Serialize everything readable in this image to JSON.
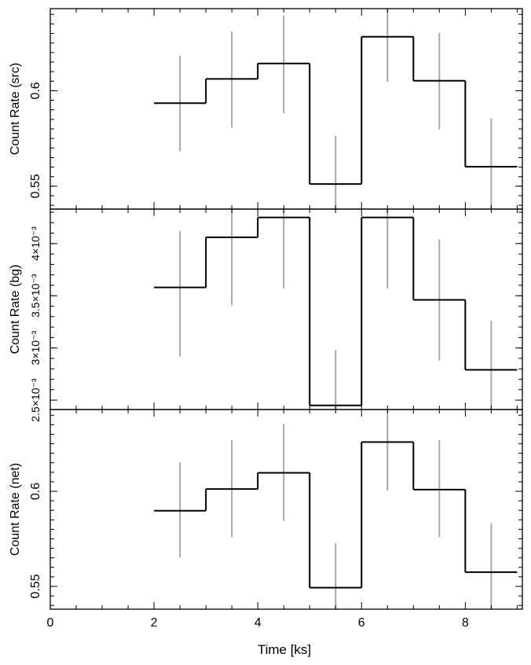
{
  "chart_data": [
    {
      "type": "line",
      "ylabel": "Count Rate (src)",
      "xlim": [
        0,
        9.1
      ],
      "ylim": [
        0.538,
        0.643
      ],
      "yticks": [
        {
          "v": 0.55,
          "label": "0.55"
        },
        {
          "v": 0.6,
          "label": "0.6"
        }
      ],
      "bins": [
        [
          2,
          3
        ],
        [
          3,
          4
        ],
        [
          4,
          5
        ],
        [
          5,
          6
        ],
        [
          6,
          7
        ],
        [
          7,
          8
        ],
        [
          8,
          9
        ]
      ],
      "values": [
        0.5935,
        0.6062,
        0.6143,
        0.5511,
        0.6283,
        0.6052,
        0.5602
      ],
      "errors": [
        {
          "x": 2.5,
          "lo": 0.5682,
          "hi": 0.6183
        },
        {
          "x": 3.5,
          "lo": 0.5806,
          "hi": 0.6311
        },
        {
          "x": 4.5,
          "lo": 0.5882,
          "hi": 0.6395
        },
        {
          "x": 5.5,
          "lo": 0.538,
          "hi": 0.5763
        },
        {
          "x": 6.5,
          "lo": 0.6046,
          "hi": 0.643
        },
        {
          "x": 7.5,
          "lo": 0.5798,
          "hi": 0.6303
        },
        {
          "x": 8.5,
          "lo": 0.538,
          "hi": 0.5855
        }
      ]
    },
    {
      "type": "line",
      "ylabel": "Count Rate (bg)",
      "xlim": [
        0,
        9.1
      ],
      "ylim": [
        0.00241,
        0.00433
      ],
      "yticks": [
        {
          "v": 0.0025,
          "label": "2.5×10⁻³"
        },
        {
          "v": 0.003,
          "label": "3×10⁻³"
        },
        {
          "v": 0.0035,
          "label": "3.5×10⁻³"
        },
        {
          "v": 0.004,
          "label": "4×10⁻³"
        }
      ],
      "bins": [
        [
          2,
          3
        ],
        [
          3,
          4
        ],
        [
          4,
          5
        ],
        [
          5,
          6
        ],
        [
          6,
          7
        ],
        [
          7,
          8
        ],
        [
          8,
          9
        ]
      ],
      "values": [
        0.00358,
        0.00406,
        0.00425,
        0.00245,
        0.00425,
        0.00346,
        0.00279
      ],
      "errors": [
        {
          "x": 2.5,
          "lo": 0.00292,
          "hi": 0.00412
        },
        {
          "x": 3.5,
          "lo": 0.00341,
          "hi": 0.00433
        },
        {
          "x": 4.5,
          "lo": 0.00357,
          "hi": 0.00433
        },
        {
          "x": 5.5,
          "lo": 0.00241,
          "hi": 0.00298
        },
        {
          "x": 6.5,
          "lo": 0.00357,
          "hi": 0.00433
        },
        {
          "x": 7.5,
          "lo": 0.00288,
          "hi": 0.00404
        },
        {
          "x": 8.5,
          "lo": 0.00241,
          "hi": 0.00326
        }
      ]
    },
    {
      "type": "line",
      "ylabel": "Count Rate (net)",
      "xlabel": "Time [ks]",
      "xlim": [
        0,
        9.1
      ],
      "xticks": [
        {
          "v": 0,
          "label": "0"
        },
        {
          "v": 2,
          "label": "2"
        },
        {
          "v": 4,
          "label": "4"
        },
        {
          "v": 6,
          "label": "6"
        },
        {
          "v": 8,
          "label": "8"
        }
      ],
      "ylim": [
        0.538,
        0.643
      ],
      "yticks": [
        {
          "v": 0.55,
          "label": "0.55"
        },
        {
          "v": 0.6,
          "label": "0.6"
        }
      ],
      "bins": [
        [
          2,
          3
        ],
        [
          3,
          4
        ],
        [
          4,
          5
        ],
        [
          5,
          6
        ],
        [
          6,
          7
        ],
        [
          7,
          8
        ],
        [
          8,
          9
        ]
      ],
      "values": [
        0.5898,
        0.6012,
        0.6097,
        0.5493,
        0.6259,
        0.6009,
        0.5575
      ],
      "errors": [
        {
          "x": 2.5,
          "lo": 0.5652,
          "hi": 0.6152
        },
        {
          "x": 3.5,
          "lo": 0.5758,
          "hi": 0.6269
        },
        {
          "x": 4.5,
          "lo": 0.5844,
          "hi": 0.6355
        },
        {
          "x": 5.5,
          "lo": 0.538,
          "hi": 0.5728
        },
        {
          "x": 6.5,
          "lo": 0.6003,
          "hi": 0.643
        },
        {
          "x": 7.5,
          "lo": 0.5758,
          "hi": 0.6269
        },
        {
          "x": 8.5,
          "lo": 0.538,
          "hi": 0.5832
        }
      ]
    }
  ],
  "colors": {
    "step": "#000000",
    "errorbar": "#a8a8a8",
    "axis": "#000000"
  }
}
